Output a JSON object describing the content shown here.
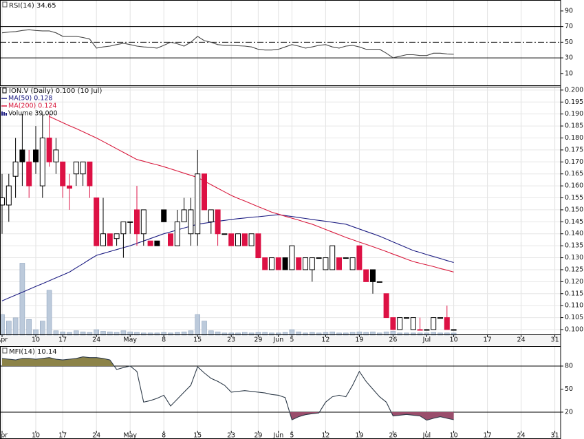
{
  "chart_data": [
    {
      "type": "line",
      "title": "RSI(14) 34.65",
      "color": "#444444",
      "values": [
        62,
        63,
        63.6,
        65,
        66,
        65,
        64.5,
        64.5,
        62,
        57.5,
        57.5,
        57.5,
        56,
        54,
        42.5,
        44,
        45,
        47,
        48.7,
        47,
        45,
        44,
        43.5,
        42.5,
        46,
        50,
        48,
        45,
        50,
        57.5,
        52,
        50,
        47,
        46,
        46,
        45.5,
        45,
        44,
        41,
        40,
        40,
        41,
        44,
        47,
        45,
        42.5,
        44,
        46,
        47,
        44,
        42.5,
        45,
        46,
        44,
        41,
        41,
        41,
        36,
        30.2,
        32,
        34,
        34,
        33,
        33,
        36,
        36,
        35,
        34.65,
        null,
        null,
        null,
        null,
        null,
        null,
        null,
        null,
        null,
        null,
        null,
        null,
        null,
        null,
        null
      ],
      "ylim": [
        -6,
        104
      ],
      "yticks": [
        90,
        70,
        50,
        30,
        10
      ],
      "levels": [
        {
          "value": 70,
          "style": "solid"
        },
        {
          "value": 50,
          "style": "dashdot"
        },
        {
          "value": 30,
          "style": "solid"
        }
      ]
    },
    {
      "type": "candlestick",
      "title": "ION.V (Daily) 0.100 (10 Jul)",
      "categories": [
        "Apr",
        null,
        null,
        null,
        null,
        "10",
        null,
        null,
        null,
        "17",
        null,
        null,
        null,
        null,
        "24",
        null,
        null,
        null,
        null,
        "May",
        null,
        null,
        null,
        null,
        "8",
        null,
        null,
        null,
        null,
        "15",
        null,
        null,
        null,
        null,
        "23",
        null,
        null,
        null,
        "29",
        null,
        null,
        "Jun",
        null,
        "5",
        null,
        null,
        null,
        null,
        "12",
        null,
        null,
        null,
        null,
        "19",
        null,
        null,
        null,
        null,
        "26",
        null,
        null,
        null,
        null,
        "Jul",
        null,
        null,
        null,
        "10",
        null,
        null,
        null,
        null,
        "17",
        null,
        null,
        null,
        null,
        "24",
        null,
        null,
        null,
        null,
        "31"
      ],
      "open": [
        0.152,
        0.152,
        0.164,
        0.175,
        0.17,
        0.175,
        0.16,
        0.18,
        0.17,
        0.17,
        0.16,
        0.165,
        0.165,
        0.17,
        0.155,
        0.135,
        0.14,
        0.138,
        0.14,
        0.145,
        0.15,
        0.14,
        0.137,
        0.137,
        0.15,
        0.14,
        0.135,
        0.145,
        0.14,
        0.14,
        0.165,
        0.145,
        0.15,
        0.14,
        0.14,
        0.135,
        0.14,
        0.135,
        0.14,
        0.13,
        0.125,
        0.13,
        0.13,
        0.125,
        0.13,
        0.125,
        0.125,
        0.13,
        0.125,
        0.125,
        0.13,
        0.13,
        0.125,
        0.135,
        0.125,
        0.125,
        0.12,
        0.115,
        0.105,
        0.1,
        0.105,
        0.1,
        0.1,
        0.1,
        0.1,
        0.105,
        0.105,
        0.1,
        null,
        null,
        null,
        null,
        null,
        null,
        null,
        null,
        null,
        null,
        null,
        null,
        null,
        null,
        null
      ],
      "high": [
        0.165,
        0.165,
        0.18,
        0.19,
        0.175,
        0.185,
        0.19,
        0.19,
        0.18,
        0.17,
        0.165,
        0.17,
        0.17,
        0.17,
        0.155,
        0.155,
        0.14,
        0.14,
        0.145,
        0.145,
        0.16,
        0.15,
        0.137,
        0.137,
        0.15,
        0.14,
        0.15,
        0.155,
        0.155,
        0.175,
        0.165,
        0.15,
        0.15,
        0.14,
        0.14,
        0.14,
        0.14,
        0.14,
        0.14,
        0.13,
        0.13,
        0.13,
        0.13,
        0.135,
        0.13,
        0.13,
        0.13,
        0.13,
        0.13,
        0.135,
        0.13,
        0.13,
        0.13,
        0.135,
        0.125,
        0.125,
        0.12,
        0.115,
        0.105,
        0.105,
        0.105,
        0.105,
        0.105,
        0.1,
        0.105,
        0.105,
        0.11,
        0.1,
        null,
        null,
        null,
        null,
        null,
        null,
        null,
        null,
        null,
        null,
        null,
        null,
        null,
        null,
        null
      ],
      "low": [
        0.14,
        0.145,
        0.155,
        0.16,
        0.155,
        0.165,
        0.155,
        0.168,
        0.165,
        0.155,
        0.15,
        0.16,
        0.16,
        0.155,
        0.135,
        0.135,
        0.135,
        0.135,
        0.13,
        0.14,
        0.135,
        0.135,
        0.135,
        0.135,
        0.145,
        0.135,
        0.135,
        0.145,
        0.135,
        0.135,
        0.15,
        0.14,
        0.135,
        0.14,
        0.135,
        0.135,
        0.135,
        0.135,
        0.13,
        0.125,
        0.125,
        0.125,
        0.125,
        0.125,
        0.125,
        0.125,
        0.12,
        0.13,
        0.125,
        0.125,
        0.125,
        0.13,
        0.125,
        0.125,
        0.12,
        0.115,
        0.12,
        0.105,
        0.1,
        0.1,
        0.105,
        0.1,
        0.1,
        0.1,
        0.1,
        0.105,
        0.1,
        0.1,
        null,
        null,
        null,
        null,
        null,
        null,
        null,
        null,
        null,
        null,
        null,
        null,
        null,
        null,
        null
      ],
      "close": [
        0.155,
        0.16,
        0.17,
        0.17,
        0.16,
        0.17,
        0.18,
        0.17,
        0.175,
        0.16,
        0.159,
        0.17,
        0.17,
        0.16,
        0.135,
        0.14,
        0.135,
        0.14,
        0.145,
        0.145,
        0.14,
        0.15,
        0.135,
        0.135,
        0.145,
        0.135,
        0.145,
        0.15,
        0.15,
        0.165,
        0.15,
        0.15,
        0.14,
        0.14,
        0.135,
        0.14,
        0.135,
        0.14,
        0.13,
        0.125,
        0.13,
        0.125,
        0.125,
        0.135,
        0.125,
        0.13,
        0.13,
        0.13,
        0.13,
        0.135,
        0.125,
        0.13,
        0.13,
        0.125,
        0.12,
        0.12,
        0.12,
        0.105,
        0.1,
        0.105,
        0.105,
        0.105,
        0.1,
        0.1,
        0.105,
        0.105,
        0.1,
        0.1,
        null,
        null,
        null,
        null,
        null,
        null,
        null,
        null,
        null,
        null,
        null,
        null,
        null,
        null,
        null
      ],
      "colors": {
        "up": "#000000",
        "down": "#dd1144"
      },
      "series": [
        {
          "name": "MA(50) 0.128",
          "color": "#1c1c82",
          "values": [
            0.112,
            0.1132,
            0.1144,
            0.1156,
            0.1168,
            0.118,
            0.1192,
            0.1204,
            0.1216,
            0.1228,
            0.124,
            0.1258,
            0.1275,
            0.1293,
            0.131,
            0.1318,
            0.1326,
            0.1334,
            0.1342,
            0.135,
            0.136,
            0.137,
            0.138,
            0.139,
            0.14,
            0.1408,
            0.1416,
            0.1424,
            0.1432,
            0.144,
            0.1444,
            0.1448,
            0.1452,
            0.1456,
            0.146,
            0.1463,
            0.1466,
            0.1469,
            0.1471,
            0.1474,
            0.1477,
            0.148,
            0.1476,
            0.1472,
            0.1468,
            0.1464,
            0.146,
            0.1456,
            0.1452,
            0.1448,
            0.1444,
            0.144,
            0.143,
            0.142,
            0.141,
            0.14,
            0.139,
            0.1378,
            0.1366,
            0.1354,
            0.1342,
            0.133,
            0.1322,
            0.1313,
            0.1305,
            0.1297,
            0.1288,
            0.128,
            null,
            null,
            null,
            null,
            null,
            null,
            null,
            null,
            null,
            null,
            null,
            null,
            null,
            null,
            null
          ]
        },
        {
          "name": "MA(200) 0.124",
          "color": "#d8193c",
          "values": [
            null,
            null,
            null,
            null,
            null,
            null,
            null,
            0.189,
            0.1877,
            0.1864,
            0.1851,
            0.1839,
            0.1826,
            0.1813,
            0.18,
            0.1785,
            0.177,
            0.1755,
            0.174,
            0.1725,
            0.171,
            0.1703,
            0.1695,
            0.1688,
            0.168,
            0.1671,
            0.1662,
            0.1653,
            0.1644,
            0.1635,
            0.162,
            0.1605,
            0.159,
            0.1575,
            0.156,
            0.1548,
            0.1537,
            0.1525,
            0.1513,
            0.1502,
            0.149,
            0.1482,
            0.1473,
            0.1465,
            0.1457,
            0.1448,
            0.144,
            0.1429,
            0.1418,
            0.1407,
            0.1396,
            0.1385,
            0.1375,
            0.1365,
            0.1356,
            0.1346,
            0.1336,
            0.1326,
            0.1315,
            0.1305,
            0.1294,
            0.1284,
            0.1277,
            0.127,
            0.1263,
            0.1255,
            0.1248,
            0.124,
            null,
            null,
            null,
            null,
            null,
            null,
            null,
            null,
            null,
            null,
            null,
            null,
            null,
            null,
            null
          ]
        }
      ],
      "volume": {
        "name": "Volume 39,000",
        "color": "#bccadb",
        "vlim": [
          0,
          1400000
        ],
        "values": [
          380000,
          260000,
          320000,
          1330000,
          290000,
          100000,
          260000,
          830000,
          80000,
          60000,
          50000,
          80000,
          60000,
          50000,
          100000,
          70000,
          60000,
          50000,
          80000,
          60000,
          50000,
          40000,
          40000,
          40000,
          50000,
          40000,
          50000,
          60000,
          80000,
          380000,
          260000,
          80000,
          60000,
          40000,
          40000,
          40000,
          50000,
          40000,
          50000,
          50000,
          40000,
          40000,
          50000,
          100000,
          60000,
          40000,
          50000,
          40000,
          50000,
          60000,
          40000,
          40000,
          50000,
          60000,
          50000,
          60000,
          40000,
          60000,
          70000,
          40000,
          40000,
          40000,
          40000,
          40000,
          50000,
          40000,
          40000,
          39000,
          null,
          null,
          null,
          null,
          null,
          null,
          null,
          null,
          null,
          null,
          null,
          null,
          null,
          null,
          null
        ]
      },
      "ylim": [
        0.0977,
        0.2014
      ],
      "yticks": [
        {
          "value": 0.1,
          "label": "0.100"
        },
        {
          "value": 0.105,
          "label": "0.105"
        },
        {
          "value": 0.11,
          "label": "0.110"
        },
        {
          "value": 0.115,
          "label": "0.115"
        },
        {
          "value": 0.12,
          "label": "0.120"
        },
        {
          "value": 0.125,
          "label": "0.125"
        },
        {
          "value": 0.13,
          "label": "0.130"
        },
        {
          "value": 0.135,
          "label": "0.135"
        },
        {
          "value": 0.14,
          "label": "0.140"
        },
        {
          "value": 0.145,
          "label": "0.145"
        },
        {
          "value": 0.15,
          "label": "0.150"
        },
        {
          "value": 0.155,
          "label": "0.155"
        },
        {
          "value": 0.16,
          "label": "0.160"
        },
        {
          "value": 0.165,
          "label": "0.165"
        },
        {
          "value": 0.17,
          "label": "0.170"
        },
        {
          "value": 0.175,
          "label": "0.175"
        },
        {
          "value": 0.18,
          "label": "0.180"
        },
        {
          "value": 0.185,
          "label": "0.185"
        },
        {
          "value": 0.19,
          "label": "0.190"
        },
        {
          "value": 0.195,
          "label": "0.195"
        },
        {
          "value": 0.2,
          "label": "0.200"
        }
      ],
      "grid": true
    },
    {
      "type": "line",
      "title": "MFI(14) 10.14",
      "color": "#2d3a48",
      "categories": [
        "Apr",
        null,
        null,
        null,
        null,
        "10",
        null,
        null,
        null,
        "17",
        null,
        null,
        null,
        null,
        "24",
        null,
        null,
        null,
        null,
        "May",
        null,
        null,
        null,
        null,
        "8",
        null,
        null,
        null,
        null,
        "15",
        null,
        null,
        null,
        null,
        "23",
        null,
        null,
        null,
        "29",
        null,
        null,
        "Jun",
        null,
        "5",
        null,
        null,
        null,
        null,
        "12",
        null,
        null,
        null,
        null,
        "19",
        null,
        null,
        null,
        null,
        "26",
        null,
        null,
        null,
        null,
        "Jul",
        null,
        null,
        null,
        "10",
        null,
        null,
        null,
        null,
        "17",
        null,
        null,
        null,
        null,
        "24",
        null,
        null,
        null,
        null,
        "31"
      ],
      "values": [
        90,
        89,
        88,
        90,
        90,
        89,
        90,
        91,
        89,
        88,
        89,
        90,
        92,
        91,
        91,
        90,
        88,
        75.5,
        78,
        80,
        73,
        33,
        35,
        38,
        42,
        28,
        37,
        46,
        55,
        79,
        71,
        64,
        60,
        55,
        46,
        47,
        48,
        47,
        46,
        45,
        43,
        42,
        39,
        10,
        14,
        16.6,
        18,
        19,
        33,
        40,
        42,
        40,
        55,
        73,
        60,
        50,
        40,
        33,
        15,
        16,
        17,
        16,
        15,
        9.5,
        12,
        14,
        12,
        10.14,
        null,
        null,
        null,
        null,
        null,
        null,
        null,
        null,
        null,
        null,
        null,
        null,
        null,
        null,
        null
      ],
      "ylim": [
        -15,
        106
      ],
      "yticks": [
        80,
        50,
        20
      ],
      "levels": [
        {
          "value": 80,
          "style": "solid"
        },
        {
          "value": 20,
          "style": "solid"
        }
      ],
      "fills": [
        {
          "above": 80,
          "color": "#8c8348"
        },
        {
          "below": 20,
          "color": "#9a4e6c"
        }
      ]
    }
  ]
}
